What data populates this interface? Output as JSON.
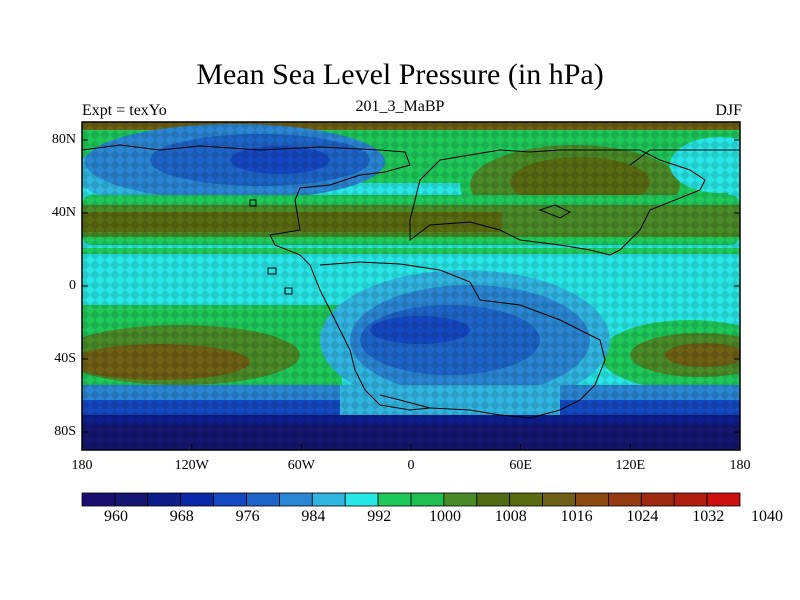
{
  "title": "Mean Sea Level Pressure (in hPa)",
  "subtitle_left": "Expt = texYo",
  "subtitle_center": "201_3_MaBP",
  "subtitle_right": "DJF",
  "lat_labels": [
    "80N",
    "40N",
    "0",
    "40S",
    "80S"
  ],
  "lon_labels": [
    "180",
    "120W",
    "60W",
    "0",
    "60E",
    "120E",
    "180"
  ],
  "colorbar": {
    "labels": [
      "960",
      "968",
      "976",
      "984",
      "992",
      "1000",
      "1008",
      "1016",
      "1024",
      "1032",
      "1040"
    ],
    "colors": [
      "#1a0f6e",
      "#141670",
      "#0d1d8a",
      "#0a28a5",
      "#1448c0",
      "#1e64c8",
      "#2a86d2",
      "#30b4e0",
      "#28e6e6",
      "#1fc85a",
      "#20be50",
      "#4a8a28",
      "#506a14",
      "#5a6a10",
      "#6e6014",
      "#8a4a10",
      "#943a10",
      "#9e2a10",
      "#b01e10",
      "#cc1010"
    ]
  },
  "legend_colors": {
    "deep_low": "#141670",
    "low": "#1e64c8",
    "cyan": "#28e6e6",
    "green": "#1fc85a",
    "olive": "#506a14",
    "brown": "#6e6014",
    "coast": "#000000"
  }
}
